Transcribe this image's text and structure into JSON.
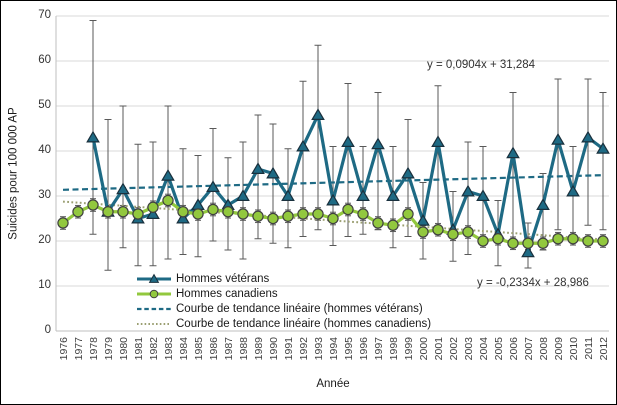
{
  "figure": {
    "y_axis": {
      "title": "Suicides pour 100 000 AP",
      "ticks": [
        0,
        10,
        20,
        30,
        40,
        50,
        60,
        70
      ],
      "min": 0,
      "max": 70
    },
    "x_axis": {
      "title": "Année"
    },
    "legend": [
      {
        "label": "Hommes vétérans",
        "type": "solid-triangle"
      },
      {
        "label": "Hommes canadiens",
        "type": "solid-circle"
      },
      {
        "label": "Courbe de tendance linéaire (hommes vétérans)",
        "type": "dashed"
      },
      {
        "label": "Courbe de tendance linéaire (hommes canadiens)",
        "type": "dotted"
      }
    ],
    "annotations": {
      "veterans_equation": "y = 0,0904x + 31,284",
      "canadians_equation": "y = -0,2334x + 28,986"
    }
  },
  "colors": {
    "veterans": "#1e6a84",
    "veterans_marker_edge": "#19303d",
    "canadians": "#92c83e",
    "canadians_marker_edge": "#404040",
    "canadians_trend": "#9b9f72",
    "error_bar": "#595959",
    "gridline": "#d9d9d9",
    "axis_line": "#bfbfbf",
    "text": "#404040"
  },
  "chart_data": {
    "type": "line",
    "title": "",
    "xlabel": "Année",
    "ylabel": "Suicides pour 100 000 AP",
    "ylim": [
      0,
      70
    ],
    "ytick_step": 10,
    "x": [
      1976,
      1977,
      1978,
      1979,
      1980,
      1981,
      1982,
      1983,
      1984,
      1985,
      1986,
      1987,
      1988,
      1989,
      1990,
      1991,
      1992,
      1993,
      1994,
      1995,
      1996,
      1997,
      1998,
      1999,
      2000,
      2001,
      2002,
      2003,
      2004,
      2005,
      2006,
      2007,
      2008,
      2009,
      2010,
      2011,
      2012
    ],
    "series": [
      {
        "name": "Hommes vétérans",
        "values": [
          null,
          null,
          43,
          26.5,
          31.5,
          25,
          26,
          34.5,
          25,
          28,
          32,
          28,
          30,
          36,
          35,
          30,
          41,
          48,
          29,
          42,
          30,
          41.5,
          30,
          35,
          24.5,
          42,
          22.5,
          31,
          30,
          21.5,
          39.5,
          17.5,
          28,
          42.5,
          31,
          43,
          40.5
        ],
        "ci_low": [
          null,
          null,
          21.5,
          13.5,
          18.5,
          14.5,
          14.5,
          16,
          17,
          16.5,
          20,
          18,
          16,
          20.5,
          19.5,
          18.5,
          21,
          22.5,
          19,
          21,
          21.5,
          22.5,
          18.5,
          21,
          16,
          21.5,
          15.5,
          17,
          20,
          14.5,
          19.5,
          14,
          18,
          22.5,
          20.5,
          23.5,
          22.5
        ],
        "ci_high": [
          null,
          null,
          69,
          47,
          50,
          41.5,
          42,
          50,
          40.5,
          39,
          45,
          38.5,
          42,
          48,
          46,
          40.5,
          55.5,
          63.5,
          41,
          55,
          41,
          53,
          41,
          47,
          33,
          54.5,
          31,
          42,
          41,
          29,
          53,
          24,
          35,
          56,
          41,
          56,
          53
        ]
      },
      {
        "name": "Hommes canadiens",
        "values": [
          24,
          26.5,
          28,
          26.5,
          26.5,
          26,
          27.5,
          29,
          26.5,
          26,
          27,
          26.5,
          26,
          25.5,
          25,
          25.5,
          26,
          26,
          25,
          27,
          26,
          24,
          23.5,
          26,
          22,
          22.5,
          21.5,
          22,
          20,
          20.5,
          19.5,
          19.5,
          19.5,
          20.5,
          20.5,
          20,
          20
        ],
        "ci_halfwidth": 1.4
      }
    ],
    "trendlines": [
      {
        "name": "Courbe de tendance linéaire (hommes vétérans)",
        "equation": "y = 0,0904x + 31,284",
        "slope": 0.0904,
        "intercept": 31.284
      },
      {
        "name": "Courbe de tendance linéaire (hommes canadiens)",
        "equation": "y = -0,2334x + 28,986",
        "slope": -0.2334,
        "intercept": 28.986
      }
    ],
    "legend_position": "bottom-inside",
    "grid": "horizontal"
  }
}
